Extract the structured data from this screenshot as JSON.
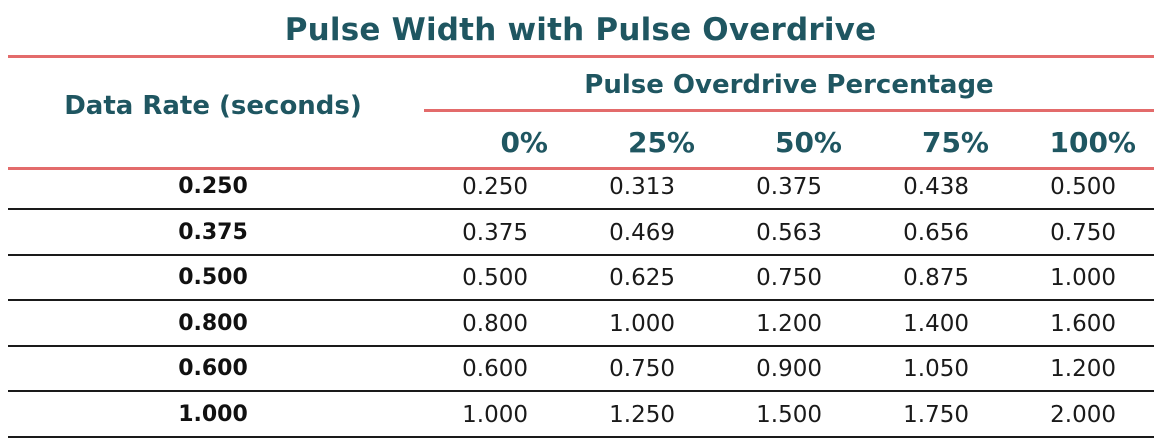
{
  "title": "Pulse Width with Pulse Overdrive",
  "row_header": "Data Rate (seconds)",
  "group_header": "Pulse Overdrive Percentage",
  "columns": [
    "0%",
    "25%",
    "50%",
    "75%",
    "100%"
  ],
  "rows": [
    {
      "label": "0.250",
      "values": [
        "0.250",
        "0.313",
        "0.375",
        "0.438",
        "0.500"
      ]
    },
    {
      "label": "0.375",
      "values": [
        "0.375",
        "0.469",
        "0.563",
        "0.656",
        "0.750"
      ]
    },
    {
      "label": "0.500",
      "values": [
        "0.500",
        "0.625",
        "0.750",
        "0.875",
        "1.000"
      ]
    },
    {
      "label": "0.800",
      "values": [
        "0.800",
        "1.000",
        "1.200",
        "1.400",
        "1.600"
      ]
    },
    {
      "label": "0.600",
      "values": [
        "0.600",
        "0.750",
        "0.900",
        "1.050",
        "1.200"
      ]
    },
    {
      "label": "1.000",
      "values": [
        "1.000",
        "1.250",
        "1.500",
        "1.750",
        "2.000"
      ]
    }
  ],
  "colors": {
    "heading": "#1f5661",
    "accent_rule": "#e36b6b",
    "row_rule": "#1a1a1a"
  }
}
